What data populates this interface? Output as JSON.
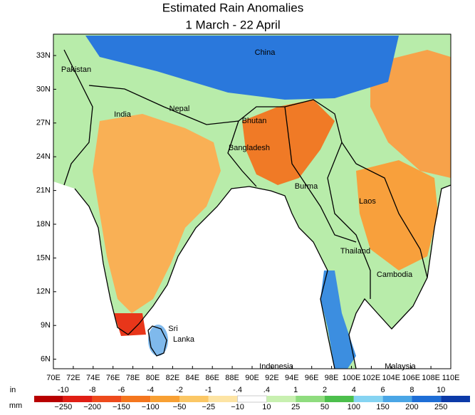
{
  "title": [
    "Estimated Rain Anomalies",
    "1 March - 22 April"
  ],
  "lat_labels": [
    "33N",
    "30N",
    "27N",
    "24N",
    "21N",
    "18N",
    "15N",
    "12N",
    "9N",
    "6N"
  ],
  "lon_labels": [
    "70E",
    "72E",
    "74E",
    "76E",
    "78E",
    "80E",
    "82E",
    "84E",
    "86E",
    "88E",
    "90E",
    "92E",
    "94E",
    "96E",
    "98E",
    "100E",
    "102E",
    "104E",
    "106E",
    "108E",
    "110E"
  ],
  "places": {
    "china": "China",
    "pakistan": "Pakistan",
    "india": "India",
    "nepal": "Nepal",
    "bhutan": "Bhutan",
    "bangladesh": "Bangladesh",
    "burma": "Burma",
    "laos": "Laos",
    "thailand": "Thailand",
    "cambodia": "Cambodia",
    "sri": "Sri",
    "lanka": "Lanka",
    "indonesia": "Indonesia",
    "malaysia": "Malaysia"
  },
  "legend": {
    "in_unit": "in",
    "in_labels": [
      "-10",
      "-8",
      "-6",
      "-4",
      "-2",
      "-1",
      "-.4",
      ".4",
      "1",
      "2",
      "4",
      "6",
      "8",
      "10"
    ],
    "mm_unit": "mm",
    "mm_labels": [
      "−250",
      "−200",
      "−150",
      "−100",
      "−50",
      "−25",
      "−10",
      "10",
      "25",
      "50",
      "100",
      "150",
      "200",
      "250"
    ],
    "colors": [
      "#b80000",
      "#e01e14",
      "#ee4a1c",
      "#f4761e",
      "#f8a033",
      "#fbc765",
      "#fde4a4",
      "#ffffff",
      "#c8f0b0",
      "#8fdc7e",
      "#4cbf4c",
      "#86d4f2",
      "#4aa6e6",
      "#1e6ed6",
      "#0c3aa8"
    ]
  }
}
